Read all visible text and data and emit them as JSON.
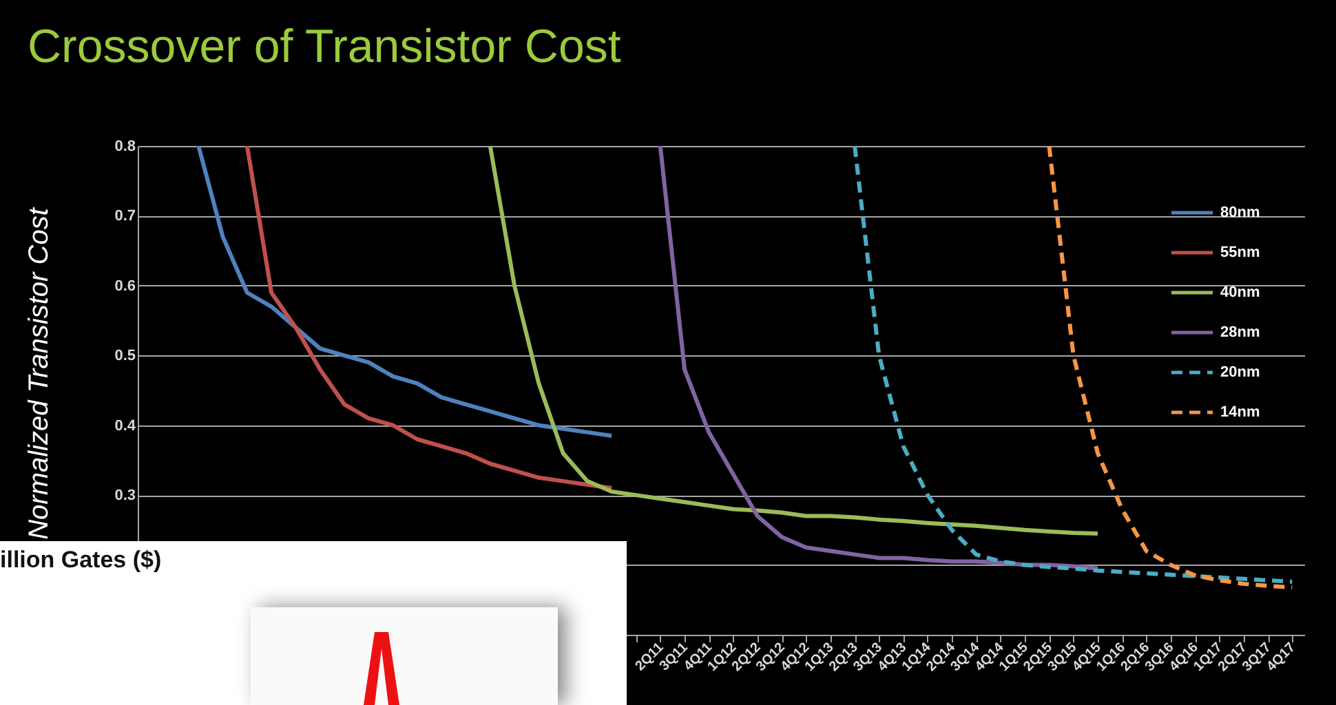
{
  "chart_data": {
    "type": "line",
    "title": "Crossover of Transistor Cost",
    "ylabel": "Normalized Transistor Cost",
    "annotations": [
      "illion Gates ($)"
    ],
    "categories": [
      null,
      null,
      null,
      null,
      null,
      null,
      null,
      null,
      null,
      null,
      null,
      null,
      null,
      null,
      null,
      null,
      null,
      null,
      null,
      null,
      null,
      "2Q11",
      "3Q11",
      "4Q11",
      "1Q12",
      "2Q12",
      "3Q12",
      "4Q12",
      "1Q13",
      "2Q13",
      "3Q13",
      "4Q13",
      "1Q14",
      "2Q14",
      "3Q14",
      "4Q14",
      "1Q15",
      "2Q15",
      "3Q15",
      "4Q15",
      "1Q16",
      "2Q16",
      "3Q16",
      "4Q16",
      "1Q17",
      "2Q17",
      "3Q17",
      "4Q17"
    ],
    "series": [
      {
        "name": "80nm",
        "color": "#4f81bd",
        "line_style": "solid",
        "values": [
          null,
          null,
          0.8,
          0.67,
          0.59,
          0.57,
          0.54,
          0.51,
          0.5,
          0.49,
          0.47,
          0.46,
          0.44,
          0.43,
          0.42,
          0.41,
          0.4,
          0.395,
          0.39,
          0.385,
          null,
          null,
          null,
          null,
          null,
          null,
          null,
          null,
          null,
          null,
          null,
          null,
          null,
          null,
          null,
          null,
          null,
          null,
          null,
          null,
          null,
          null,
          null,
          null,
          null,
          null,
          null,
          null
        ]
      },
      {
        "name": "55nm",
        "color": "#c0504d",
        "line_style": "solid",
        "values": [
          null,
          null,
          null,
          null,
          0.8,
          0.59,
          0.54,
          0.48,
          0.43,
          0.41,
          0.4,
          0.38,
          0.37,
          0.36,
          0.345,
          0.335,
          0.325,
          0.32,
          0.315,
          0.31,
          null,
          null,
          null,
          null,
          null,
          null,
          null,
          null,
          null,
          null,
          null,
          null,
          null,
          null,
          null,
          null,
          null,
          null,
          null,
          null,
          null,
          null,
          null,
          null,
          null,
          null,
          null,
          null
        ]
      },
      {
        "name": "40nm",
        "color": "#9bbb59",
        "line_style": "solid",
        "values": [
          null,
          null,
          null,
          null,
          null,
          null,
          null,
          null,
          null,
          null,
          null,
          null,
          null,
          null,
          0.8,
          0.6,
          0.46,
          0.36,
          0.32,
          0.305,
          0.3,
          0.295,
          0.29,
          0.285,
          0.28,
          0.278,
          0.275,
          0.27,
          0.27,
          0.268,
          0.265,
          0.263,
          0.26,
          0.258,
          0.256,
          0.253,
          0.25,
          0.248,
          0.246,
          0.245,
          null,
          null,
          null,
          null,
          null,
          null,
          null,
          null
        ]
      },
      {
        "name": "28nm",
        "color": "#8064a2",
        "line_style": "solid",
        "values": [
          null,
          null,
          null,
          null,
          null,
          null,
          null,
          null,
          null,
          null,
          null,
          null,
          null,
          null,
          null,
          null,
          null,
          null,
          null,
          null,
          null,
          0.8,
          0.48,
          0.39,
          0.33,
          0.27,
          0.24,
          0.225,
          0.22,
          0.215,
          0.21,
          0.21,
          0.207,
          0.205,
          0.205,
          0.203,
          0.2,
          0.2,
          0.198,
          0.195,
          null,
          null,
          null,
          null,
          null,
          null,
          null,
          null
        ]
      },
      {
        "name": "20nm",
        "color": "#4bacc6",
        "line_style": "dashed",
        "values": [
          null,
          null,
          null,
          null,
          null,
          null,
          null,
          null,
          null,
          null,
          null,
          null,
          null,
          null,
          null,
          null,
          null,
          null,
          null,
          null,
          null,
          null,
          null,
          null,
          null,
          null,
          null,
          null,
          null,
          0.8,
          0.5,
          0.37,
          0.3,
          0.25,
          0.215,
          0.205,
          0.2,
          0.197,
          0.195,
          0.192,
          0.19,
          0.188,
          0.186,
          0.184,
          0.182,
          0.18,
          0.178,
          0.176
        ]
      },
      {
        "name": "14nm",
        "color": "#f79646",
        "line_style": "dashed",
        "values": [
          null,
          null,
          null,
          null,
          null,
          null,
          null,
          null,
          null,
          null,
          null,
          null,
          null,
          null,
          null,
          null,
          null,
          null,
          null,
          null,
          null,
          null,
          null,
          null,
          null,
          null,
          null,
          null,
          null,
          null,
          null,
          null,
          null,
          null,
          null,
          null,
          null,
          0.8,
          0.5,
          0.36,
          0.28,
          0.22,
          0.2,
          0.185,
          0.178,
          0.173,
          0.17,
          0.168
        ]
      }
    ],
    "ylim": [
      0.1,
      0.8
    ],
    "yticks": [
      {
        "value": 0.2,
        "label": null
      },
      0.3,
      0.4,
      0.5,
      0.6,
      0.7,
      0.8
    ],
    "grid": "y",
    "legend": "top right"
  }
}
